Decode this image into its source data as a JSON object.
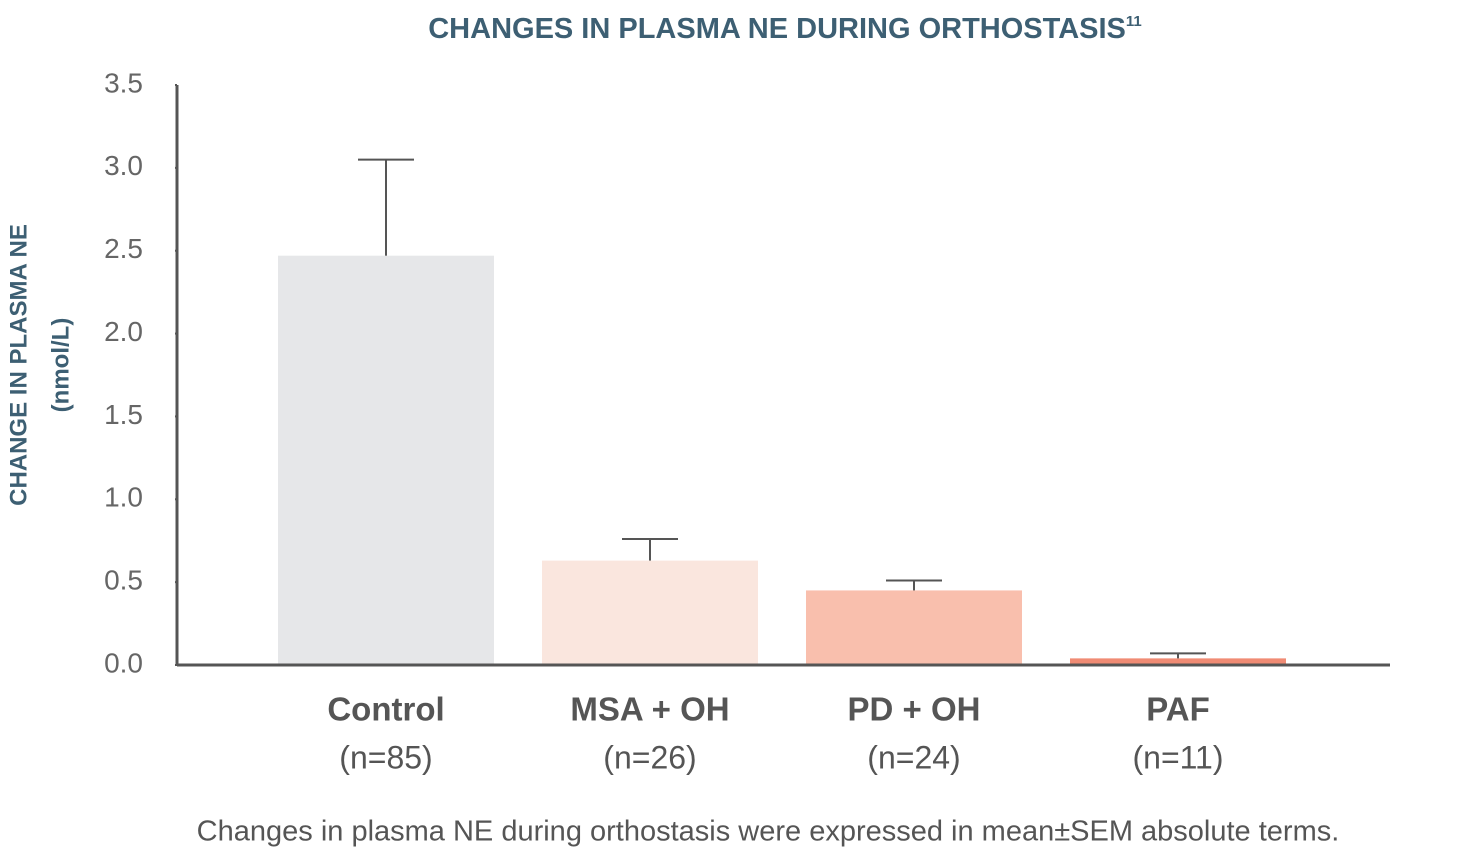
{
  "chart_data": {
    "type": "bar",
    "title": "CHANGES IN PLASMA NE DURING ORTHOSTASIS",
    "title_superscript": "11",
    "y_label": [
      "CHANGE IN PLASMA NE",
      "(nmol/L)"
    ],
    "categories": [
      "Control",
      "MSA + OH",
      "PD + OH",
      "PAF"
    ],
    "sample_sizes": [
      "(n=85)",
      "(n=26)",
      "(n=24)",
      "(n=11)"
    ],
    "values": [
      2.47,
      0.63,
      0.45,
      0.04
    ],
    "errors": [
      0.58,
      0.13,
      0.06,
      0.03
    ],
    "colors": [
      "#e6e7e9",
      "#fae6de",
      "#f9bfad",
      "#f08b74"
    ],
    "ylim": [
      0,
      3.5
    ],
    "yticks": [
      {
        "value": 0,
        "label": "0.0"
      },
      0.5,
      {
        "value": 1,
        "label": "1.0"
      },
      1.5,
      {
        "value": 2,
        "label": "2.0"
      },
      2.5,
      {
        "value": 3,
        "label": "3.0"
      },
      3.5
    ],
    "caption": "Changes in plasma NE during orthostasis were expressed in mean±SEM absolute terms."
  }
}
